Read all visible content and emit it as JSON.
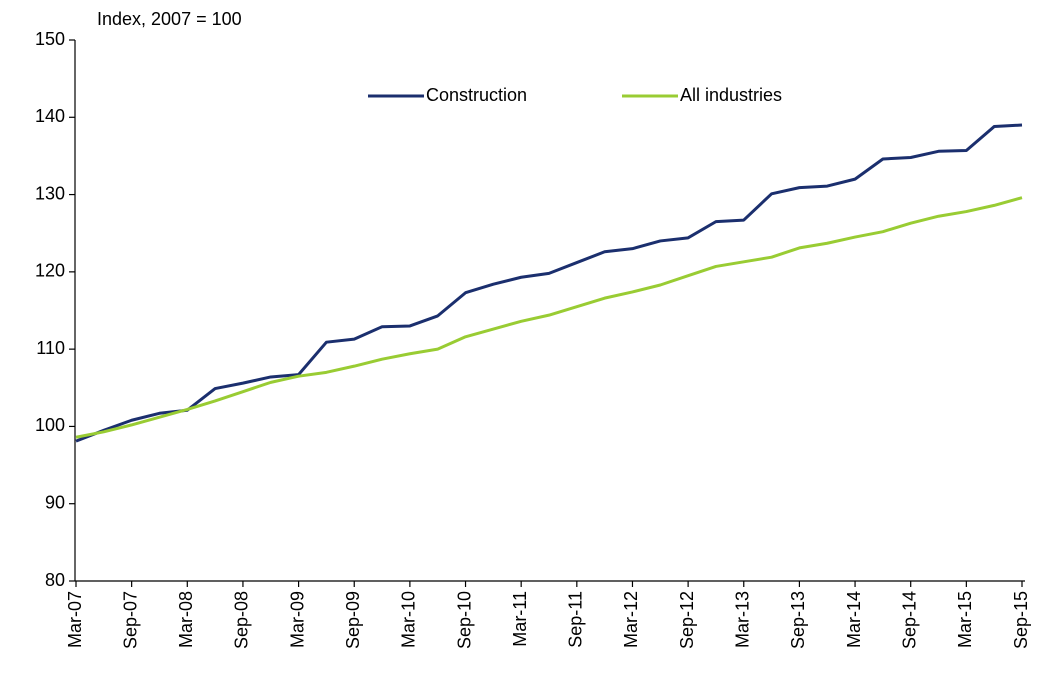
{
  "chart_data": {
    "type": "line",
    "y_axis_label": "Index, 2007 = 100",
    "categories": [
      "Mar-07",
      null,
      "Sep-07",
      null,
      "Mar-08",
      null,
      "Sep-08",
      null,
      "Mar-09",
      null,
      "Sep-09",
      null,
      "Mar-10",
      null,
      "Sep-10",
      null,
      "Mar-11",
      null,
      "Sep-11",
      null,
      "Mar-12",
      null,
      "Sep-12",
      null,
      "Mar-13",
      null,
      "Sep-13",
      null,
      "Mar-14",
      null,
      "Sep-14",
      null,
      "Mar-15",
      null,
      "Sep-15"
    ],
    "series": [
      {
        "name": "Construction",
        "color": "#1b2f6e",
        "values": [
          98.1,
          99.5,
          100.8,
          101.7,
          102.1,
          104.9,
          105.6,
          106.4,
          106.7,
          110.9,
          111.3,
          112.9,
          113.0,
          114.3,
          117.3,
          118.4,
          119.3,
          119.8,
          121.2,
          122.6,
          123.0,
          124.0,
          124.4,
          126.5,
          126.7,
          130.1,
          130.9,
          131.1,
          132.0,
          134.6,
          134.8,
          135.6,
          135.7,
          138.8,
          139.0
        ]
      },
      {
        "name": "All industries",
        "color": "#99cc33",
        "values": [
          98.6,
          99.3,
          100.2,
          101.2,
          102.2,
          103.3,
          104.5,
          105.7,
          106.5,
          107.0,
          107.8,
          108.7,
          109.4,
          110.0,
          111.6,
          112.6,
          113.6,
          114.4,
          115.5,
          116.6,
          117.4,
          118.3,
          119.5,
          120.7,
          121.3,
          121.9,
          123.1,
          123.7,
          124.5,
          125.2,
          126.3,
          127.2,
          127.8,
          128.6,
          129.6
        ]
      }
    ],
    "ylim": [
      80,
      150
    ],
    "yticks": [
      80,
      90,
      100,
      110,
      120,
      130,
      140,
      150
    ],
    "grid": false,
    "legend": "top"
  }
}
